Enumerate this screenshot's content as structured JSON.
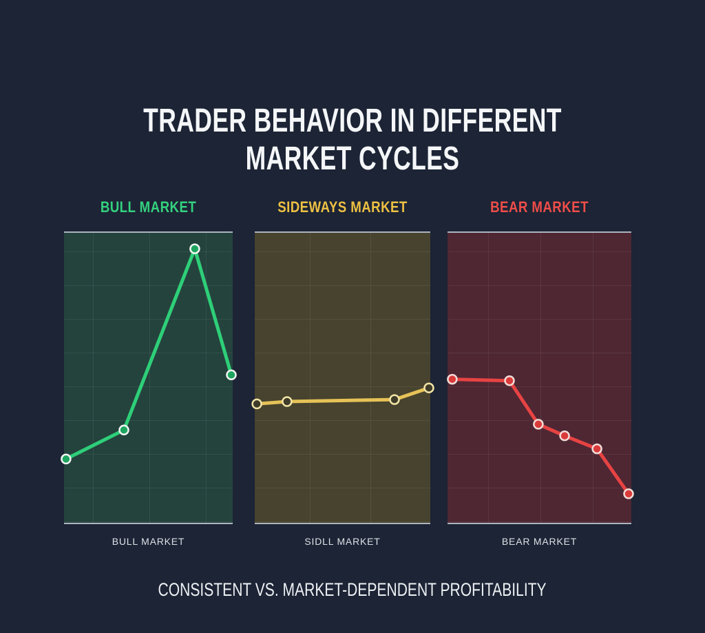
{
  "page": {
    "background_color": "#1c2435",
    "title_line1": "TRADER BEHAVIOR IN DIFFERENT",
    "title_line2": "MARKET CYCLES",
    "caption": "CONSISTENT VS. MARKET-DEPENDENT PROFITABILITY"
  },
  "chart_data": [
    {
      "type": "line",
      "title": "BULL MARKET",
      "title_color": "#34d17e",
      "x_axis_label": "BULL MARKET",
      "x": [
        1.2,
        35.5,
        77.5,
        99.2
      ],
      "values": [
        22,
        32,
        94.5,
        51
      ],
      "xlim": [
        0,
        100
      ],
      "ylim": [
        0,
        100
      ],
      "grid": true,
      "legend": "none",
      "line_color": "#2ecf78",
      "marker_fill": "#1ea55f",
      "marker_ring": "#f2f4f3",
      "panel_bg": "#24433d"
    },
    {
      "type": "line",
      "title": "SIDEWAYS MARKET",
      "title_color": "#edc043",
      "x_axis_label": "SIDLL MARKET",
      "x": [
        1.2,
        18.4,
        79.6,
        99.2
      ],
      "values": [
        41,
        41.8,
        42.5,
        46.5
      ],
      "xlim": [
        0,
        100
      ],
      "ylim": [
        0,
        100
      ],
      "grid": true,
      "legend": "none",
      "line_color": "#e6c257",
      "marker_fill": "#3f3c2a",
      "marker_ring": "#f2e4a6",
      "panel_bg": "#47432e"
    },
    {
      "type": "line",
      "title": "BEAR MARKET",
      "title_color": "#ef4d49",
      "x_axis_label": "BEAR MARKET",
      "x": [
        2.6,
        33.7,
        49.4,
        63.7,
        81.3,
        98.5
      ],
      "values": [
        49.5,
        49,
        34,
        30,
        25.5,
        10
      ],
      "xlim": [
        0,
        100
      ],
      "ylim": [
        0,
        100
      ],
      "grid": true,
      "legend": "none",
      "line_color": "#e74343",
      "marker_fill": "#da3a3a",
      "marker_ring": "#f1dbd6",
      "panel_bg": "#4e2733"
    }
  ]
}
